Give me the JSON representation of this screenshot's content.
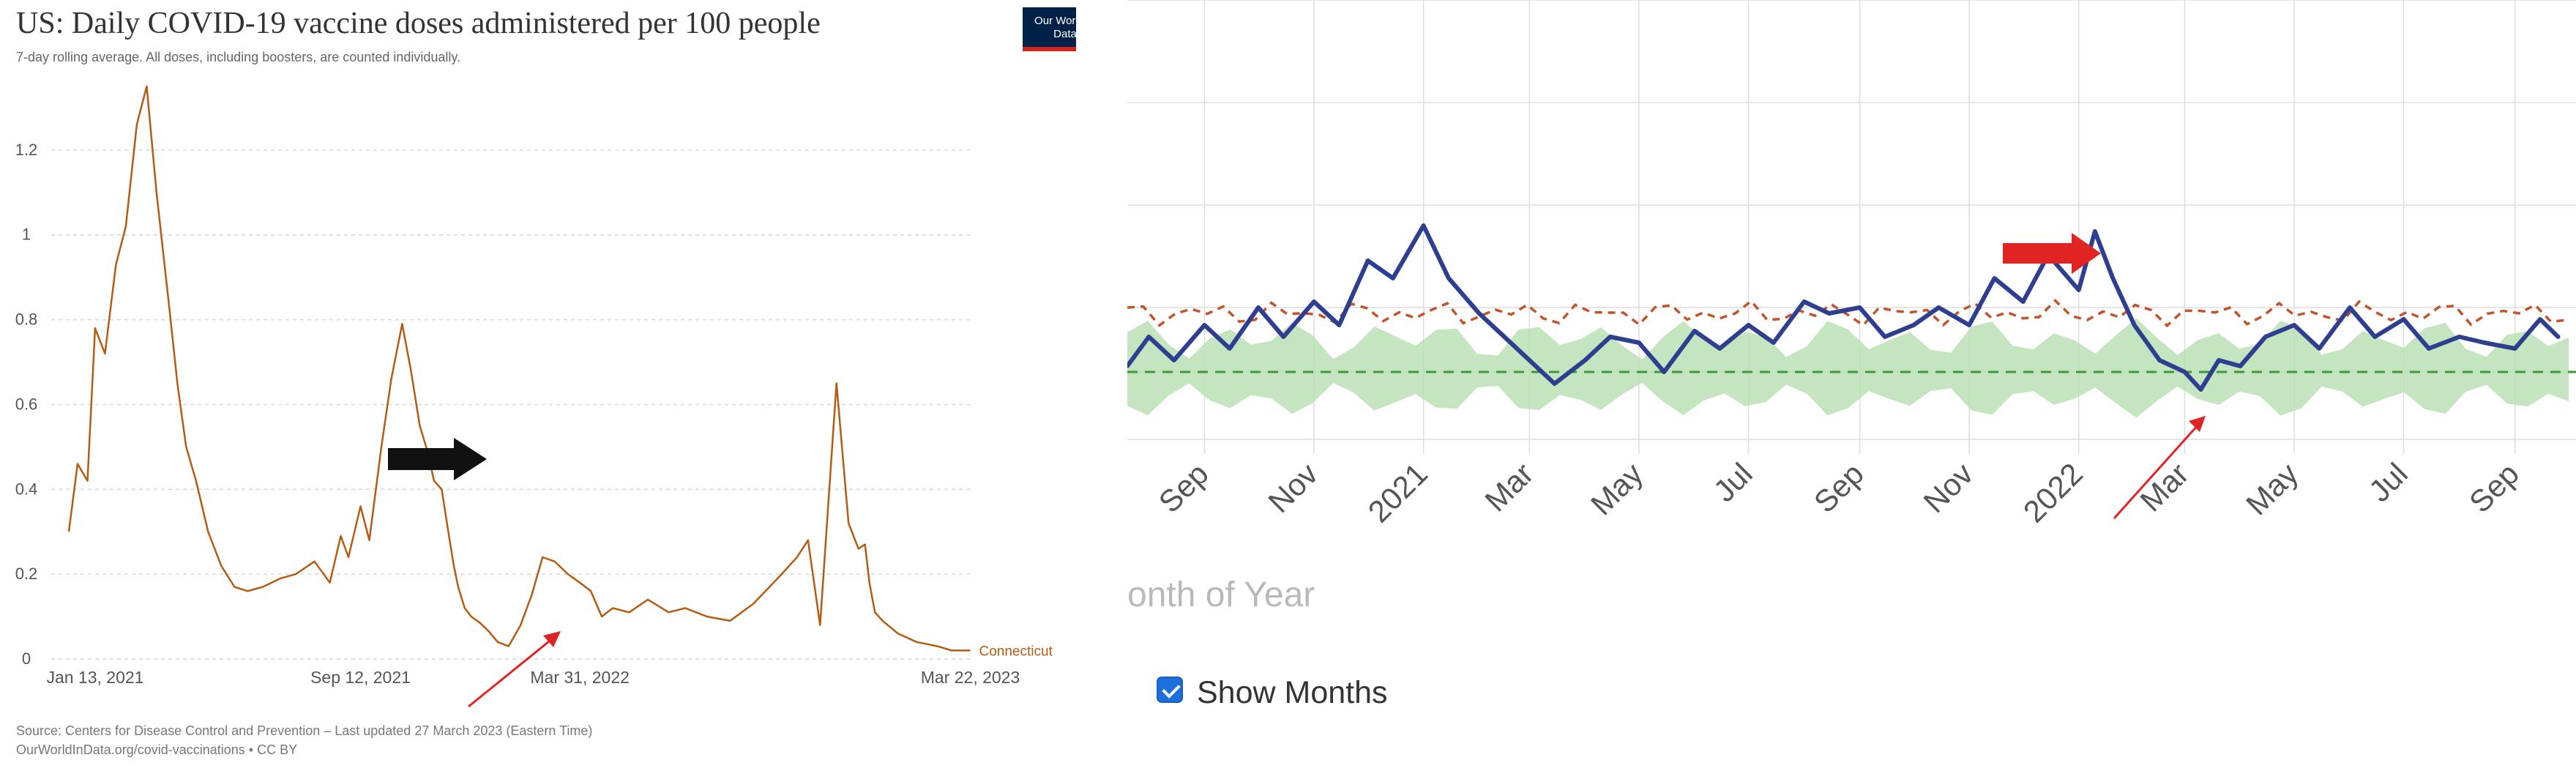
{
  "left_chart": {
    "title": "US: Daily COVID-19 vaccine doses administered per 100 people",
    "subtitle": "7-day rolling average. All doses, including boosters, are counted individually.",
    "logo_text": "Our World in Data",
    "source_line1": "Source: Centers for Disease Control and Prevention – Last updated 27 March 2023 (Eastern Time)",
    "source_line2": "OurWorldInData.org/covid-vaccinations • CC BY",
    "series_label": "Connecticut",
    "colors": {
      "line": "#b35c13",
      "grid": "#d6d6d6",
      "text": "#555555",
      "black_arrow": "#111111",
      "red_arrow": "#e02424"
    }
  },
  "right_chart": {
    "x_axis_title_partial": "onth of Year",
    "checkbox_label": "Show Months",
    "checkbox_checked": true,
    "colors": {
      "main_line": "#2e3f8f",
      "dashed_line": "#c0552c",
      "band_fill": "#b7dfb0",
      "baseline": "#3a9a3a",
      "grid": "#dddddd",
      "arrow": "#e02424"
    }
  },
  "chart_data": [
    {
      "type": "line",
      "title": "US: Daily COVID-19 vaccine doses administered per 100 people",
      "subtitle": "7-day rolling average. All doses, including boosters, are counted individually.",
      "x_ticks": [
        "Jan 13, 2021",
        "Sep 12, 2021",
        "Mar 31, 2022",
        "Mar 22, 2023"
      ],
      "y_ticks": [
        "0",
        "0.2",
        "0.4",
        "0.6",
        "0.8",
        "1",
        "1.2"
      ],
      "ylim": [
        0,
        1.35
      ],
      "grid": true,
      "series": [
        {
          "name": "Connecticut",
          "x": [
            "2020-12-20",
            "2020-12-28",
            "2021-01-06",
            "2021-01-13",
            "2021-01-22",
            "2021-02-01",
            "2021-02-10",
            "2021-02-20",
            "2021-03-01",
            "2021-03-10",
            "2021-03-16",
            "2021-03-22",
            "2021-03-29",
            "2021-04-06",
            "2021-04-15",
            "2021-04-26",
            "2021-05-08",
            "2021-05-20",
            "2021-06-01",
            "2021-06-15",
            "2021-07-01",
            "2021-07-15",
            "2021-08-01",
            "2021-08-15",
            "2021-08-25",
            "2021-09-01",
            "2021-09-12",
            "2021-09-20",
            "2021-10-01",
            "2021-10-10",
            "2021-10-20",
            "2021-10-28",
            "2021-11-05",
            "2021-11-12",
            "2021-11-18",
            "2021-11-25",
            "2021-12-01",
            "2021-12-06",
            "2021-12-10",
            "2021-12-16",
            "2021-12-22",
            "2021-12-30",
            "2022-01-07",
            "2022-01-15",
            "2022-01-25",
            "2022-02-05",
            "2022-02-15",
            "2022-02-25",
            "2022-03-08",
            "2022-03-20",
            "2022-03-31",
            "2022-04-10",
            "2022-04-20",
            "2022-04-30",
            "2022-05-15",
            "2022-06-01",
            "2022-06-20",
            "2022-07-05",
            "2022-07-25",
            "2022-08-15",
            "2022-09-05",
            "2022-09-20",
            "2022-10-01",
            "2022-10-15",
            "2022-10-25",
            "2022-11-05",
            "2022-11-20",
            "2022-12-01",
            "2022-12-10",
            "2022-12-16",
            "2022-12-20",
            "2022-12-25",
            "2023-01-01",
            "2023-01-15",
            "2023-02-01",
            "2023-02-20",
            "2023-03-05",
            "2023-03-22"
          ],
          "y": [
            0.3,
            0.46,
            0.42,
            0.78,
            0.72,
            0.93,
            1.02,
            1.26,
            1.35,
            1.1,
            0.96,
            0.82,
            0.65,
            0.5,
            0.42,
            0.3,
            0.22,
            0.17,
            0.16,
            0.17,
            0.19,
            0.2,
            0.23,
            0.18,
            0.29,
            0.24,
            0.36,
            0.28,
            0.5,
            0.66,
            0.79,
            0.68,
            0.55,
            0.49,
            0.42,
            0.4,
            0.3,
            0.22,
            0.17,
            0.12,
            0.1,
            0.085,
            0.065,
            0.04,
            0.03,
            0.08,
            0.15,
            0.24,
            0.23,
            0.2,
            0.18,
            0.16,
            0.1,
            0.12,
            0.11,
            0.14,
            0.11,
            0.12,
            0.1,
            0.09,
            0.13,
            0.17,
            0.2,
            0.24,
            0.28,
            0.08,
            0.65,
            0.32,
            0.26,
            0.27,
            0.18,
            0.11,
            0.09,
            0.06,
            0.04,
            0.03,
            0.02,
            0.02
          ]
        }
      ],
      "annotations": [
        "black arrow pointing right near Nov 2021",
        "red arrow pointing at local minimum near Mar 31, 2022"
      ]
    },
    {
      "type": "line",
      "xlabel": "onth of Year",
      "x_ticks": [
        "Sep",
        "Nov",
        "2021",
        "Mar",
        "May",
        "Jul",
        "Sep",
        "Nov",
        "2022",
        "Mar",
        "May",
        "Jul",
        "Sep"
      ],
      "x_months": [
        "2020-09",
        "2020-11",
        "2021-01",
        "2021-03",
        "2021-05",
        "2021-07",
        "2021-09",
        "2021-11",
        "2022-01",
        "2022-03",
        "2022-05",
        "2022-07",
        "2022-09"
      ],
      "grid": true,
      "series": [
        {
          "name": "",
          "style": "solid blue",
          "x": [
            "2020-07-20",
            "2020-08-01",
            "2020-08-15",
            "2020-09-01",
            "2020-09-15",
            "2020-10-01",
            "2020-10-15",
            "2020-11-01",
            "2020-11-15",
            "2020-12-01",
            "2020-12-15",
            "2021-01-01",
            "2021-01-15",
            "2021-02-01",
            "2021-02-15",
            "2021-03-01",
            "2021-03-15",
            "2021-04-01",
            "2021-04-15",
            "2021-05-01",
            "2021-05-15",
            "2021-06-01",
            "2021-06-15",
            "2021-07-01",
            "2021-07-15",
            "2021-08-01",
            "2021-08-15",
            "2021-09-01",
            "2021-09-15",
            "2021-10-01",
            "2021-10-15",
            "2021-11-01",
            "2021-11-15",
            "2021-12-01",
            "2021-12-15",
            "2022-01-01",
            "2022-01-10",
            "2022-01-20",
            "2022-02-01",
            "2022-02-15",
            "2022-03-01",
            "2022-03-10",
            "2022-03-20",
            "2022-04-01",
            "2022-04-15",
            "2022-05-01",
            "2022-05-15",
            "2022-06-01",
            "2022-06-15",
            "2022-07-01",
            "2022-07-15",
            "2022-08-01",
            "2022-08-15",
            "2022-09-01",
            "2022-09-15",
            "2022-09-25"
          ],
          "y": [
            0.05,
            0.3,
            0.1,
            0.4,
            0.2,
            0.55,
            0.3,
            0.6,
            0.4,
            0.95,
            0.8,
            1.25,
            0.8,
            0.5,
            0.3,
            0.1,
            -0.1,
            0.1,
            0.3,
            0.25,
            0.0,
            0.35,
            0.2,
            0.4,
            0.25,
            0.6,
            0.5,
            0.55,
            0.3,
            0.4,
            0.55,
            0.4,
            0.8,
            0.6,
            1.0,
            0.7,
            1.2,
            0.8,
            0.4,
            0.1,
            0.0,
            -0.15,
            0.1,
            0.05,
            0.3,
            0.4,
            0.2,
            0.55,
            0.3,
            0.45,
            0.2,
            0.3,
            0.25,
            0.2,
            0.45,
            0.3
          ]
        },
        {
          "name": "",
          "style": "dashed orange",
          "x": [
            "2020-07-20",
            "2020-09-01",
            "2020-11-01",
            "2021-01-01",
            "2021-03-01",
            "2021-05-01",
            "2021-07-01",
            "2021-09-01",
            "2021-11-01",
            "2022-01-01",
            "2022-03-01",
            "2022-05-01",
            "2022-07-01",
            "2022-09-25"
          ],
          "y": [
            0.5,
            0.55,
            0.5,
            0.55,
            0.5,
            0.55,
            0.5,
            0.55,
            0.5,
            0.55,
            0.5,
            0.55,
            0.5,
            0.5
          ]
        }
      ],
      "annotations": [
        "red arrow pointing right near Jan 2022 peak",
        "red arrow pointing at dip near Mar 2022"
      ]
    }
  ]
}
